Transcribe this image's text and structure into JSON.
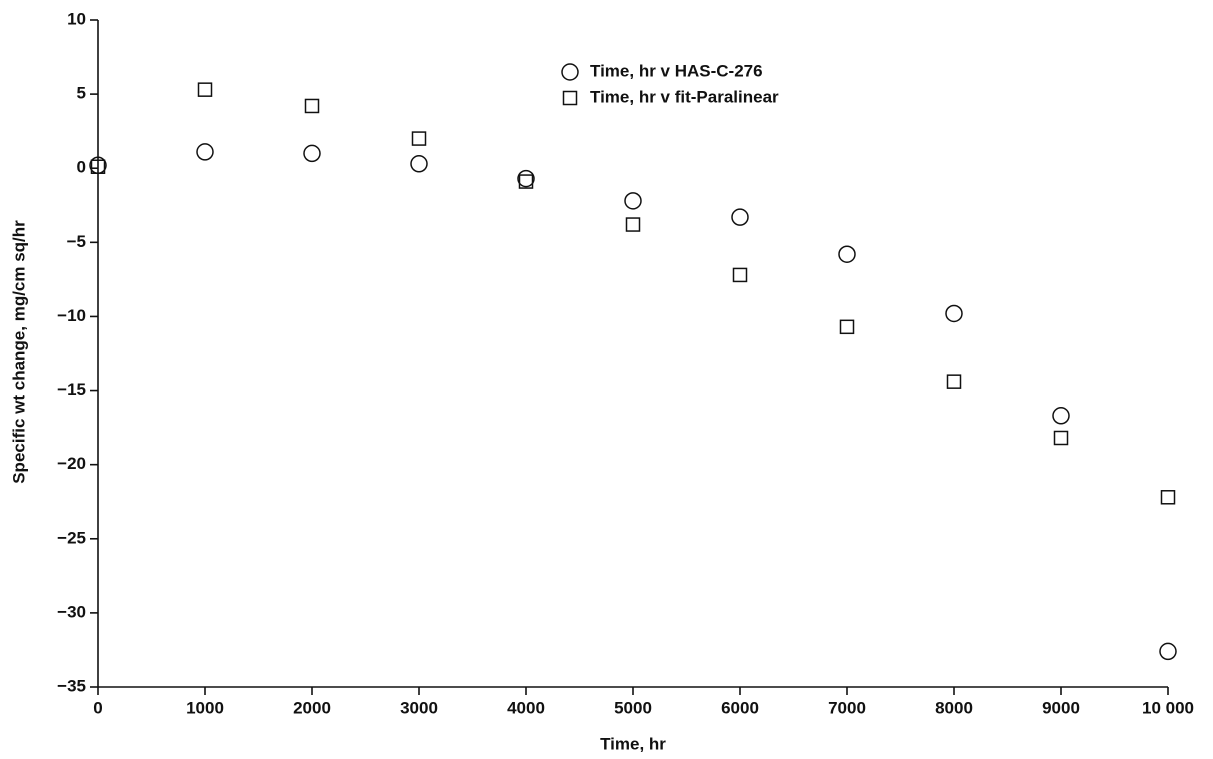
{
  "chart_data": {
    "type": "scatter",
    "x_label": "Time, hr",
    "y_label": "Specific wt change, mg/cm sq/hr",
    "xlim": [
      0,
      10000
    ],
    "xticks": [
      0,
      1000,
      2000,
      3000,
      4000,
      5000,
      6000,
      7000,
      8000,
      9000,
      {
        "value": 10000,
        "label": "10 000"
      }
    ],
    "ylim": [
      -35,
      10
    ],
    "yticks": [
      {
        "value": -35,
        "label": "−35"
      },
      {
        "value": -30,
        "label": "−30"
      },
      {
        "value": -25,
        "label": "−25"
      },
      {
        "value": -20,
        "label": "−20"
      },
      {
        "value": -15,
        "label": "−15"
      },
      {
        "value": -10,
        "label": "−10"
      },
      {
        "value": -5,
        "label": "−5"
      },
      0,
      5,
      10
    ],
    "x": [
      0,
      1000,
      2000,
      3000,
      4000,
      5000,
      6000,
      7000,
      8000,
      9000,
      10000
    ],
    "series": [
      {
        "name": "Time, hr v HAS-C-276",
        "color": "#111111",
        "marker": "circle",
        "values": [
          0.2,
          1.1,
          1.0,
          0.3,
          -0.7,
          -2.2,
          -3.3,
          -5.8,
          -9.8,
          -16.7,
          -32.6
        ]
      },
      {
        "name": "Time, hr v fit-Paralinear",
        "color": "#111111",
        "marker": "square",
        "values": [
          0.1,
          5.3,
          4.2,
          2.0,
          -0.9,
          -3.8,
          -7.2,
          -10.7,
          -14.4,
          -18.2,
          -22.2
        ]
      }
    ],
    "legend": "upper-center",
    "grid": false
  }
}
